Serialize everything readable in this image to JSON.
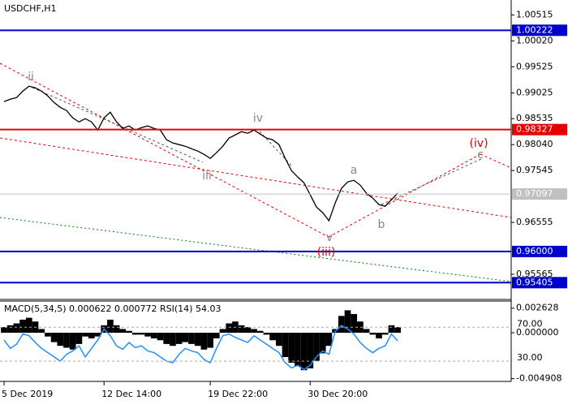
{
  "chart_data": [
    {
      "type": "line",
      "title": "USDCHF,H1",
      "categories": [
        "5 Dec 2019",
        null,
        null,
        null,
        null,
        null,
        null,
        null,
        null,
        null,
        null,
        null,
        null,
        null,
        null,
        null,
        "12 Dec 14:00",
        null,
        null,
        null,
        null,
        null,
        null,
        null,
        null,
        null,
        null,
        null,
        null,
        null,
        null,
        null,
        null,
        "19 Dec 22:00",
        null,
        null,
        null,
        null,
        null,
        null,
        null,
        null,
        null,
        null,
        null,
        null,
        null,
        null,
        null,
        "30 Dec 20:00",
        null,
        null,
        null,
        null,
        null,
        null,
        null,
        null,
        null,
        null,
        null,
        null,
        null,
        null
      ],
      "series": [
        {
          "color": "#000000",
          "values": [
            0.9886,
            0.98906,
            0.98937,
            0.99061,
            0.99154,
            0.99123,
            0.99061,
            0.98968,
            0.98844,
            0.98751,
            0.9869,
            0.9855,
            0.98473,
            0.98535,
            0.98473,
            0.98318,
            0.9855,
            0.98659,
            0.98473,
            0.98349,
            0.98396,
            0.98318,
            0.98365,
            0.98396,
            0.98349,
            0.98318,
            0.98133,
            0.98071,
            0.9804,
            0.98009,
            0.97962,
            0.97916,
            0.97854,
            0.97777,
            0.97885,
            0.98009,
            0.98164,
            0.98225,
            0.98287,
            0.98256,
            0.98318,
            0.98241,
            0.98164,
            0.98133,
            0.9804,
            0.97777,
            0.97545,
            0.97421,
            0.97313,
            0.97081,
            0.96849,
            0.9674,
            0.96586,
            0.96926,
            0.97204,
            0.97328,
            0.97359,
            0.97266,
            0.97112,
            0.97019,
            0.96895,
            0.96864,
            0.96988,
            0.97112
          ]
        }
      ],
      "ylim": [
        0.951,
        1.008
      ],
      "yticks": [
        1.00515,
        {
          "value": 1.0002,
          "label": "1.00020"
        },
        0.99525,
        0.99025,
        0.98535,
        {
          "value": 0.9804,
          "label": "0.98040"
        },
        0.97545,
        0.96555,
        0.95565
      ],
      "levels": [
        {
          "value": 1.00222,
          "label": "1.00222",
          "color": "#0000cc"
        },
        {
          "value": 0.98327,
          "label": "0.98327",
          "color": "#e60000"
        },
        {
          "value": 0.97097,
          "label": "0.97097",
          "color": "#c0c0c0"
        },
        {
          "value": 0.96,
          "label": "0.96000",
          "color": "#0000cc"
        },
        {
          "value": 0.95405,
          "label": "0.95405",
          "color": "#0000cc"
        }
      ],
      "annotations": [
        "ii",
        "iii",
        "iv",
        "v",
        "(iii)",
        "a",
        "b",
        "c",
        "(iv)"
      ]
    },
    {
      "type": "macd",
      "title": "MACD(5,34,5) 0.000622 0.000772 RSI(14) 54.03",
      "series": [
        {
          "type": "bar",
          "color": "#000000",
          "values": [
            0.0006,
            0.0008,
            0.001,
            0.0014,
            0.0016,
            0.0012,
            0.0004,
            -0.0004,
            -0.001,
            -0.0014,
            -0.0016,
            -0.0018,
            -0.0012,
            -0.0004,
            -0.0006,
            -0.0004,
            0.0008,
            0.0014,
            0.0008,
            0.0004,
            0.0002,
            -0.0002,
            -0.0002,
            -0.0004,
            -0.0006,
            -0.0008,
            -0.0012,
            -0.0014,
            -0.0012,
            -0.001,
            -0.0012,
            -0.0014,
            -0.0018,
            -0.0016,
            -0.0006,
            0.0004,
            0.001,
            0.0012,
            0.0008,
            0.0006,
            0.0004,
            0.0002,
            -0.0002,
            -0.0008,
            -0.0014,
            -0.0026,
            -0.0032,
            -0.0036,
            -0.004,
            -0.0038,
            -0.003,
            -0.0022,
            -0.0014,
            0.0004,
            0.0018,
            0.0024,
            0.002,
            0.0012,
            0.0004,
            -0.0002,
            -0.0006,
            -0.0002,
            0.0008,
            0.0006
          ]
        },
        {
          "type": "line",
          "color": "#1e90ff",
          "axis": "y2",
          "values": [
            55,
            45,
            50,
            62,
            60,
            52,
            45,
            40,
            35,
            30,
            38,
            42,
            48,
            35,
            45,
            55,
            68,
            60,
            48,
            44,
            52,
            46,
            48,
            42,
            40,
            35,
            30,
            28,
            38,
            45,
            42,
            40,
            32,
            28,
            45,
            60,
            62,
            58,
            55,
            52,
            60,
            55,
            50,
            45,
            40,
            28,
            22,
            25,
            20,
            25,
            35,
            42,
            38,
            65,
            72,
            68,
            62,
            52,
            45,
            40,
            45,
            48,
            62,
            54
          ]
        }
      ],
      "ylim": [
        -0.0052,
        0.0033
      ],
      "yticks": [
        0.002628,
        {
          "value": 0,
          "label": "0.000000"
        },
        -0.004908
      ],
      "y2lim": [
        6,
        100
      ],
      "y2ticks": [
        {
          "value": 70,
          "label": "70.00"
        },
        {
          "value": 30,
          "label": "30.00"
        }
      ]
    }
  ]
}
